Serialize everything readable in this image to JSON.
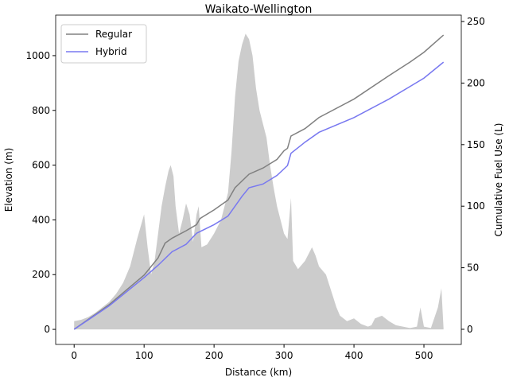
{
  "chart_data": {
    "type": "line",
    "title": "Waikato-Wellington",
    "x_label": "Distance (km)",
    "y_label": "Elevation (m)",
    "y2_label": "Cumulative Fuel Use (L)",
    "xlim": [
      -26.4,
      553.4
    ],
    "ylim": [
      -55,
      1148
    ],
    "y2lim": [
      -12.3,
      255.2
    ],
    "xticks": [
      0,
      100,
      200,
      300,
      400,
      500
    ],
    "yticks": [
      0,
      200,
      400,
      600,
      800,
      1000
    ],
    "y2ticks": [
      0,
      50,
      100,
      150,
      200,
      250
    ],
    "legend": "upper left",
    "area": {
      "color": "#cccccc",
      "x": [
        0,
        10,
        20,
        30,
        40,
        50,
        60,
        70,
        80,
        90,
        100,
        105,
        110,
        115,
        120,
        125,
        130,
        135,
        138,
        142,
        145,
        150,
        155,
        160,
        165,
        170,
        175,
        178,
        182,
        190,
        200,
        210,
        220,
        225,
        230,
        235,
        240,
        245,
        250,
        255,
        260,
        265,
        270,
        275,
        280,
        285,
        290,
        295,
        300,
        305,
        310,
        313,
        320,
        330,
        340,
        345,
        350,
        360,
        365,
        370,
        375,
        380,
        385,
        390,
        400,
        410,
        420,
        425,
        430,
        440,
        450,
        460,
        470,
        480,
        490,
        495,
        500,
        510,
        520,
        525,
        528
      ],
      "values": [
        30,
        35,
        45,
        60,
        80,
        100,
        130,
        170,
        230,
        330,
        420,
        300,
        200,
        250,
        350,
        450,
        520,
        580,
        600,
        560,
        450,
        350,
        400,
        460,
        420,
        320,
        420,
        450,
        300,
        310,
        350,
        400,
        500,
        650,
        850,
        980,
        1040,
        1080,
        1060,
        1000,
        880,
        800,
        750,
        700,
        600,
        520,
        450,
        400,
        350,
        330,
        480,
        250,
        220,
        250,
        300,
        270,
        230,
        200,
        160,
        120,
        80,
        50,
        40,
        30,
        40,
        20,
        10,
        15,
        40,
        50,
        30,
        15,
        10,
        5,
        10,
        80,
        10,
        5,
        80,
        150,
        5
      ]
    },
    "series": [
      {
        "name": "Regular",
        "color": "#808080",
        "x": [
          0,
          50,
          100,
          120,
          130,
          140,
          160,
          175,
          180,
          200,
          220,
          230,
          250,
          270,
          290,
          300,
          305,
          310,
          330,
          350,
          400,
          450,
          480,
          500,
          528
        ],
        "values": [
          0,
          20,
          44,
          58,
          70,
          74,
          80,
          85,
          90,
          97,
          105,
          115,
          126,
          131,
          138,
          145,
          147,
          157,
          163,
          172,
          187,
          206,
          217,
          225,
          239
        ]
      },
      {
        "name": "Hybrid",
        "color": "#7878f0",
        "x": [
          0,
          50,
          100,
          120,
          140,
          160,
          175,
          200,
          220,
          240,
          250,
          270,
          290,
          305,
          310,
          330,
          350,
          400,
          450,
          500,
          528
        ],
        "values": [
          0,
          19,
          42,
          52,
          63,
          69,
          78,
          85,
          92,
          108,
          115,
          118,
          125,
          133,
          143,
          152,
          160,
          172,
          187,
          204,
          217
        ]
      }
    ]
  }
}
